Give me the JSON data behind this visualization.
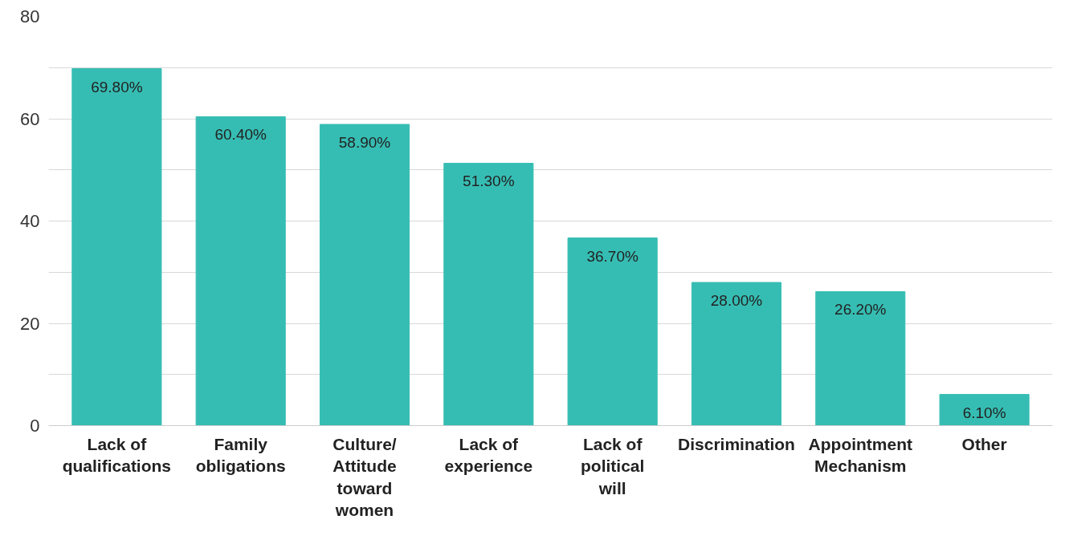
{
  "chart_data": {
    "type": "bar",
    "categories": [
      "Lack of qualifications",
      "Family obligations",
      "Culture/ Attitude toward women",
      "Lack of experience",
      "Lack of political will",
      "Discrimination",
      "Appointment Mechanism",
      "Other"
    ],
    "values": [
      69.8,
      60.4,
      58.9,
      51.3,
      36.7,
      28.0,
      26.2,
      6.1
    ],
    "value_labels": [
      "69.80%",
      "60.40%",
      "58.90%",
      "51.30%",
      "36.70%",
      "28.00%",
      "26.20%",
      "6.10%"
    ],
    "color": "#36bdb3",
    "ylim": [
      0,
      80
    ],
    "yticks": [
      0,
      {
        "value": 10,
        "label": null
      },
      20,
      {
        "value": 30,
        "label": null
      },
      40,
      {
        "value": 50,
        "label": null
      },
      60,
      {
        "value": 70,
        "label": null
      },
      80
    ],
    "grid": "y"
  }
}
